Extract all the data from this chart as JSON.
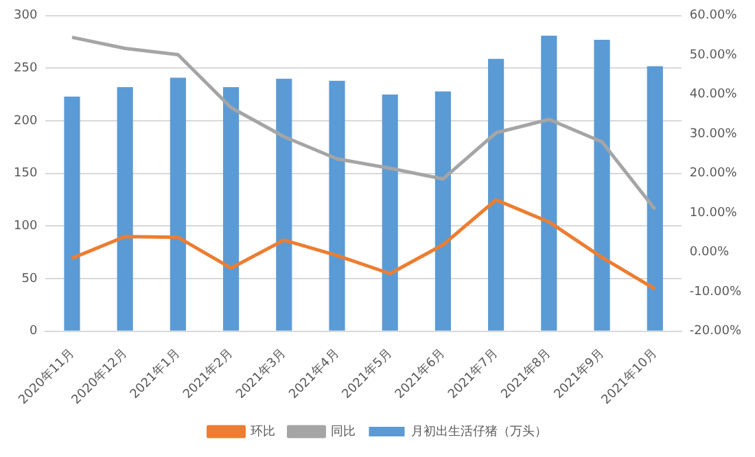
{
  "chart_data": {
    "type": "bar",
    "categories": [
      "2020年11月",
      "2020年12月",
      "2021年1月",
      "2021年2月",
      "2021年3月",
      "2021年4月",
      "2021年5月",
      "2021年6月",
      "2021年7月",
      "2021年8月",
      "2021年9月",
      "2021年10月"
    ],
    "series": [
      {
        "name": "月初出生活仔猪（万头）",
        "color": "#5b9bd5",
        "values": [
          223,
          232,
          241,
          232,
          240,
          238,
          225,
          228,
          259,
          281,
          277,
          252
        ]
      },
      {
        "name": "环比",
        "type": "line",
        "axis": "y2",
        "color": "#ed7d31",
        "values": [
          -1.5,
          4,
          3.8,
          -4,
          3.1,
          -0.8,
          -5.4,
          1.9,
          13.3,
          7.7,
          -1.3,
          -9.3
        ]
      },
      {
        "name": "同比",
        "type": "line",
        "axis": "y2",
        "color": "#a5a5a5",
        "values": [
          54.5,
          51.7,
          50.1,
          36.7,
          29.3,
          23.7,
          21.3,
          18.6,
          30.3,
          33.7,
          28,
          10.9
        ]
      }
    ],
    "ylim": [
      0,
      300
    ],
    "yticks": [
      0,
      50,
      100,
      150,
      200,
      250,
      300
    ],
    "y2lim": [
      -20,
      60
    ],
    "y2ticks": [
      {
        "value": -20,
        "label": "-20.00%"
      },
      {
        "value": -10,
        "label": "-10.00%"
      },
      {
        "value": 0,
        "label": "0.00%"
      },
      {
        "value": 10,
        "label": "10.00%"
      },
      {
        "value": 20,
        "label": "20.00%"
      },
      {
        "value": 30,
        "label": "30.00%"
      },
      {
        "value": 40,
        "label": "40.00%"
      },
      {
        "value": 50,
        "label": "50.00%"
      },
      {
        "value": 60,
        "label": "60.00%"
      }
    ],
    "grid": "y",
    "legend": "bottom",
    "marker": "none",
    "line_style": "solid"
  }
}
